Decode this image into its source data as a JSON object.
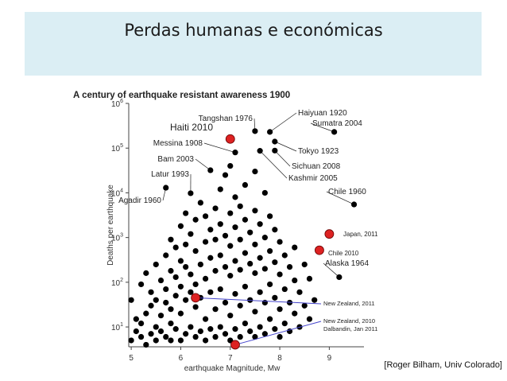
{
  "slide": {
    "title": "Perdas humanas e económicas",
    "credit": "[Roger Bilham, Univ Colorado]"
  },
  "colors": {
    "band": "#dbeef4",
    "dot": "#000000",
    "highlight": "#dd2222",
    "leader": "#4444cc"
  },
  "chart_data": {
    "type": "scatter",
    "title": "A century of earthquake resistant awareness 1900",
    "xlabel": "earthquake Magnitude, Mw",
    "ylabel": "Deaths per earthquake",
    "xlim": [
      4.95,
      9.7
    ],
    "ylim": [
      3.6,
      1000000
    ],
    "yscale": "log",
    "x_ticks": [
      5,
      6,
      7,
      8,
      9
    ],
    "y_ticks": [
      {
        "value": 10,
        "base": "10",
        "exp": "1"
      },
      {
        "value": 100,
        "base": "10",
        "exp": "2"
      },
      {
        "value": 1000,
        "base": "10",
        "exp": "3"
      },
      {
        "value": 10000,
        "base": "10",
        "exp": "4"
      },
      {
        "value": 100000,
        "base": "10",
        "exp": "5"
      },
      {
        "value": 1000000,
        "base": "10",
        "exp": "6"
      }
    ],
    "grid": false,
    "legend": "none",
    "labeled_events": [
      {
        "label": "Haiyuan 1920",
        "x": 7.8,
        "y": 230000
      },
      {
        "label": "Sumatra 2004",
        "x": 9.1,
        "y": 230000
      },
      {
        "label": "Tangshan 1976",
        "x": 7.5,
        "y": 240000
      },
      {
        "label": "Messina 1908",
        "x": 7.1,
        "y": 80000
      },
      {
        "label": "Tokyo 1923",
        "x": 7.9,
        "y": 140000
      },
      {
        "label": "Bam 2003",
        "x": 6.6,
        "y": 32000
      },
      {
        "label": "Sichuan 2008",
        "x": 7.9,
        "y": 88000
      },
      {
        "label": "Kashmir 2005",
        "x": 7.6,
        "y": 87000
      },
      {
        "label": "Latur 1993",
        "x": 6.2,
        "y": 9800
      },
      {
        "label": "Agadir 1960",
        "x": 5.7,
        "y": 13000
      },
      {
        "label": "Chile 1960",
        "x": 9.5,
        "y": 5500
      },
      {
        "label": "Alaska 1964",
        "x": 9.2,
        "y": 130
      }
    ],
    "highlighted_events": [
      {
        "label": "Haiti 2010",
        "x": 7.0,
        "y": 160000
      },
      {
        "label": "Japan, 2011",
        "x": 9.0,
        "y": 1200
      },
      {
        "label": "Chile 2010",
        "x": 8.8,
        "y": 520
      },
      {
        "label": "New Zealand, 2011",
        "x": 6.3,
        "y": 45
      },
      {
        "label": "New Zealand, 2010\nDalbandin, Jan 2011",
        "x": 7.1,
        "y": 4
      }
    ],
    "background_points": [
      [
        5.0,
        40
      ],
      [
        5.0,
        5
      ],
      [
        5.1,
        8
      ],
      [
        5.1,
        15
      ],
      [
        5.2,
        6
      ],
      [
        5.2,
        12
      ],
      [
        5.2,
        90
      ],
      [
        5.3,
        4
      ],
      [
        5.3,
        20
      ],
      [
        5.3,
        160
      ],
      [
        5.4,
        7
      ],
      [
        5.4,
        30
      ],
      [
        5.4,
        60
      ],
      [
        5.5,
        5
      ],
      [
        5.5,
        10
      ],
      [
        5.5,
        40
      ],
      [
        5.5,
        250
      ],
      [
        5.6,
        8
      ],
      [
        5.6,
        18
      ],
      [
        5.6,
        110
      ],
      [
        5.7,
        6
      ],
      [
        5.7,
        35
      ],
      [
        5.7,
        70
      ],
      [
        5.7,
        400
      ],
      [
        5.8,
        5
      ],
      [
        5.8,
        12
      ],
      [
        5.8,
        25
      ],
      [
        5.8,
        180
      ],
      [
        5.8,
        900
      ],
      [
        5.9,
        9
      ],
      [
        5.9,
        50
      ],
      [
        5.9,
        130
      ],
      [
        5.9,
        600
      ],
      [
        6.0,
        5
      ],
      [
        6.0,
        20
      ],
      [
        6.0,
        80
      ],
      [
        6.0,
        300
      ],
      [
        6.0,
        1800
      ],
      [
        6.1,
        7
      ],
      [
        6.1,
        40
      ],
      [
        6.1,
        220
      ],
      [
        6.1,
        700
      ],
      [
        6.1,
        3500
      ],
      [
        6.2,
        10
      ],
      [
        6.2,
        60
      ],
      [
        6.2,
        150
      ],
      [
        6.2,
        1200
      ],
      [
        6.3,
        6
      ],
      [
        6.3,
        28
      ],
      [
        6.3,
        90
      ],
      [
        6.3,
        500
      ],
      [
        6.3,
        2500
      ],
      [
        6.4,
        8
      ],
      [
        6.4,
        45
      ],
      [
        6.4,
        250
      ],
      [
        6.4,
        6000
      ],
      [
        6.5,
        5
      ],
      [
        6.5,
        15
      ],
      [
        6.5,
        120
      ],
      [
        6.5,
        800
      ],
      [
        6.5,
        3000
      ],
      [
        6.6,
        9
      ],
      [
        6.6,
        60
      ],
      [
        6.6,
        350
      ],
      [
        6.6,
        1500
      ],
      [
        6.7,
        6
      ],
      [
        6.7,
        25
      ],
      [
        6.7,
        180
      ],
      [
        6.7,
        900
      ],
      [
        6.7,
        4500
      ],
      [
        6.8,
        10
      ],
      [
        6.8,
        70
      ],
      [
        6.8,
        400
      ],
      [
        6.8,
        2000
      ],
      [
        6.8,
        12000
      ],
      [
        6.9,
        7
      ],
      [
        6.9,
        35
      ],
      [
        6.9,
        220
      ],
      [
        6.9,
        1100
      ],
      [
        6.9,
        25000
      ],
      [
        7.0,
        5
      ],
      [
        7.0,
        18
      ],
      [
        7.0,
        140
      ],
      [
        7.0,
        650
      ],
      [
        7.0,
        3500
      ],
      [
        7.0,
        40000
      ],
      [
        7.1,
        9
      ],
      [
        7.1,
        55
      ],
      [
        7.1,
        300
      ],
      [
        7.1,
        1700
      ],
      [
        7.1,
        8000
      ],
      [
        7.2,
        6
      ],
      [
        7.2,
        30
      ],
      [
        7.2,
        190
      ],
      [
        7.2,
        900
      ],
      [
        7.2,
        5000
      ],
      [
        7.3,
        12
      ],
      [
        7.3,
        80
      ],
      [
        7.3,
        450
      ],
      [
        7.3,
        2500
      ],
      [
        7.3,
        15000
      ],
      [
        7.4,
        8
      ],
      [
        7.4,
        40
      ],
      [
        7.4,
        260
      ],
      [
        7.4,
        1300
      ],
      [
        7.5,
        6
      ],
      [
        7.5,
        22
      ],
      [
        7.5,
        160
      ],
      [
        7.5,
        700
      ],
      [
        7.5,
        4000
      ],
      [
        7.5,
        30000
      ],
      [
        7.6,
        10
      ],
      [
        7.6,
        60
      ],
      [
        7.6,
        350
      ],
      [
        7.6,
        2000
      ],
      [
        7.7,
        7
      ],
      [
        7.7,
        35
      ],
      [
        7.7,
        200
      ],
      [
        7.7,
        1000
      ],
      [
        7.7,
        10000
      ],
      [
        7.8,
        15
      ],
      [
        7.8,
        90
      ],
      [
        7.8,
        500
      ],
      [
        7.8,
        3000
      ],
      [
        7.9,
        9
      ],
      [
        7.9,
        45
      ],
      [
        7.9,
        280
      ],
      [
        7.9,
        1500
      ],
      [
        8.0,
        6
      ],
      [
        8.0,
        25
      ],
      [
        8.0,
        150
      ],
      [
        8.0,
        800
      ],
      [
        8.1,
        12
      ],
      [
        8.1,
        70
      ],
      [
        8.1,
        400
      ],
      [
        8.2,
        8
      ],
      [
        8.2,
        35
      ],
      [
        8.2,
        220
      ],
      [
        8.3,
        20
      ],
      [
        8.3,
        110
      ],
      [
        8.3,
        600
      ],
      [
        8.4,
        10
      ],
      [
        8.4,
        60
      ],
      [
        8.5,
        30
      ],
      [
        8.5,
        250
      ],
      [
        8.6,
        15
      ],
      [
        8.6,
        120
      ],
      [
        8.7,
        40
      ]
    ]
  }
}
